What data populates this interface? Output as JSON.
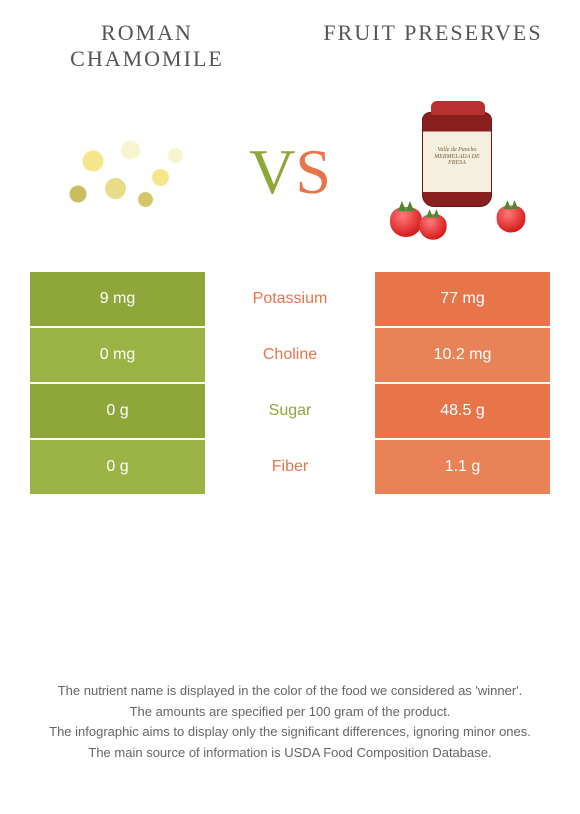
{
  "left_food": {
    "title": "ROMAN CHAMOMILE",
    "color": "#8fa63a",
    "alt_color": "#9bb244"
  },
  "right_food": {
    "title": "FRUIT PRESERVES",
    "color": "#e8754a",
    "alt_color": "#ea8257"
  },
  "vs": {
    "v": "V",
    "s": "S"
  },
  "nutrients": [
    {
      "name": "Potassium",
      "left": "9 mg",
      "right": "77 mg",
      "winner": "right"
    },
    {
      "name": "Choline",
      "left": "0 mg",
      "right": "10.2 mg",
      "winner": "right"
    },
    {
      "name": "Sugar",
      "left": "0 g",
      "right": "48.5 g",
      "winner": "left"
    },
    {
      "name": "Fiber",
      "left": "0 g",
      "right": "1.1 g",
      "winner": "right"
    }
  ],
  "footer": {
    "line1": "The nutrient name is displayed in the color of the food we considered as 'winner'.",
    "line2": "The amounts are specified per 100 gram of the product.",
    "line3": "The infographic aims to display only the significant differences, ignoring minor ones.",
    "line4": "The main source of information is USDA Food Composition Database."
  },
  "jar_label": "Valle de Pancho\nMERMELADA DE FRESA"
}
